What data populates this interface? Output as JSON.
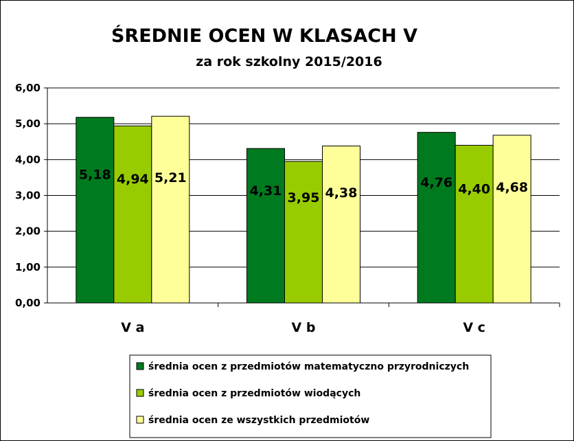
{
  "chart_data": {
    "type": "bar",
    "title": "ŚREDNIE OCEN W KLASACH V",
    "subtitle": "za rok szkolny 2015/2016",
    "categories": [
      "V a",
      "V b",
      "V c"
    ],
    "series": [
      {
        "name": "średnia ocen z przedmiotów matematyczno przyrodniczych",
        "color": "#007a1f",
        "values": [
          5.18,
          4.31,
          4.76
        ],
        "labels": [
          "5,18",
          "4,31",
          "4,76"
        ]
      },
      {
        "name": "średnia ocen z przedmiotów wiodących",
        "color": "#99cc00",
        "values": [
          4.94,
          3.95,
          4.4
        ],
        "labels": [
          "4,94",
          "3,95",
          "4,40"
        ]
      },
      {
        "name": "średnia ocen ze wszystkich przedmiotów",
        "color": "#ffff99",
        "values": [
          5.21,
          4.38,
          4.68
        ],
        "labels": [
          "5,21",
          "4,38",
          "4,68"
        ]
      }
    ],
    "ylim": [
      0,
      6
    ],
    "yticks": [
      0,
      1,
      2,
      3,
      4,
      5,
      6
    ],
    "ytick_labels": [
      "0,00",
      "1,00",
      "2,00",
      "3,00",
      "4,00",
      "5,00",
      "6,00"
    ],
    "grid": true,
    "legend_position": "bottom"
  }
}
